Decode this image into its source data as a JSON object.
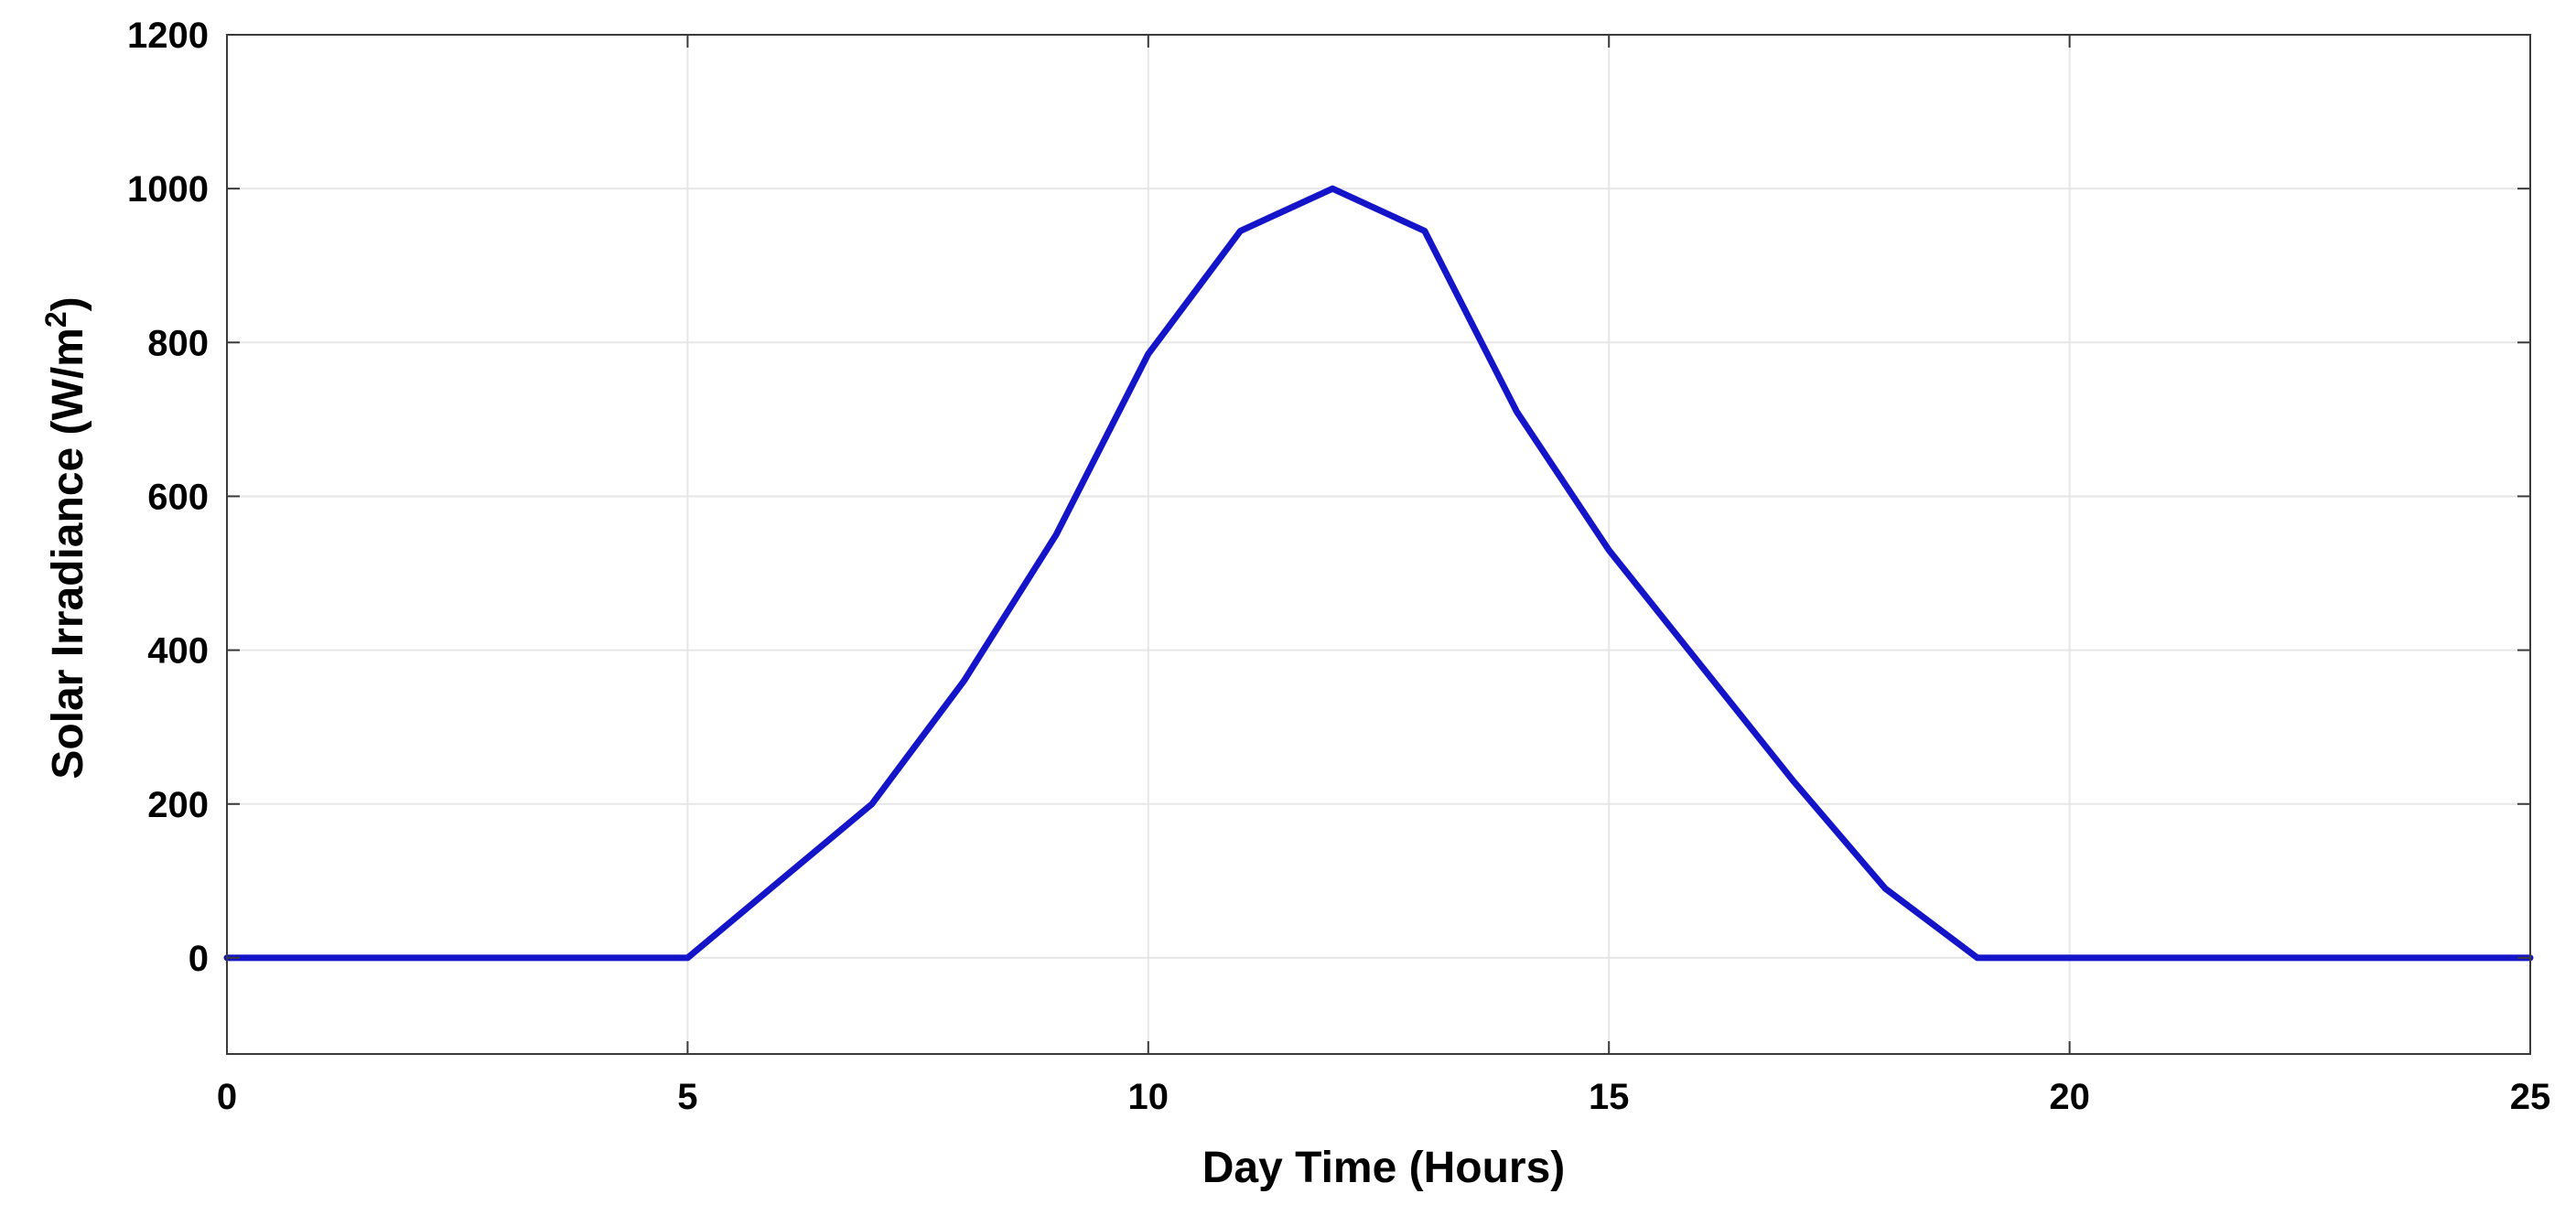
{
  "chart_data": {
    "type": "line",
    "title": "",
    "xlabel": "Day Time (Hours)",
    "ylabel_main": "Solar Irradiance (W/m",
    "ylabel_sup": "2",
    "ylabel_end": ")",
    "xlim": [
      0,
      25
    ],
    "ylim": [
      -125,
      1200
    ],
    "xticks": [
      0,
      5,
      10,
      15,
      20,
      25
    ],
    "yticks": [
      0,
      200,
      400,
      600,
      800,
      1000,
      1200
    ],
    "grid": true,
    "series": [
      {
        "color": "#1414c8",
        "x": [
          0,
          1,
          2,
          3,
          4,
          5,
          6,
          7,
          8,
          9,
          10,
          11,
          12,
          13,
          14,
          15,
          16,
          17,
          18,
          19,
          20,
          21,
          22,
          23,
          24,
          25
        ],
        "y": [
          0,
          0,
          0,
          0,
          0,
          0,
          100,
          200,
          360,
          550,
          785,
          945,
          1000,
          945,
          710,
          530,
          380,
          230,
          90,
          0,
          0,
          0,
          0,
          0,
          0,
          0
        ]
      }
    ]
  }
}
